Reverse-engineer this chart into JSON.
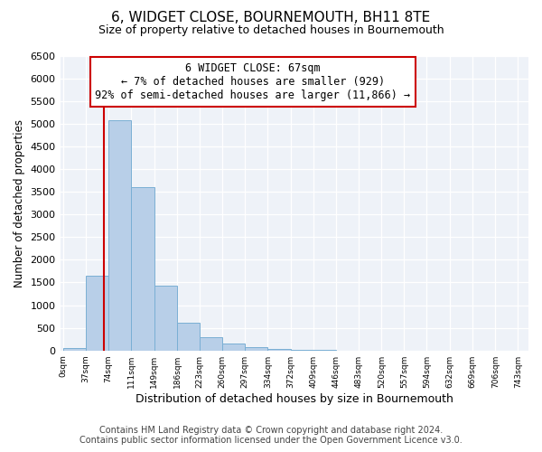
{
  "title": "6, WIDGET CLOSE, BOURNEMOUTH, BH11 8TE",
  "subtitle": "Size of property relative to detached houses in Bournemouth",
  "xlabel": "Distribution of detached houses by size in Bournemouth",
  "ylabel": "Number of detached properties",
  "bin_edges": [
    0,
    37,
    74,
    111,
    149,
    186,
    223,
    260,
    297,
    334,
    372,
    409,
    446,
    483,
    520,
    557,
    594,
    632,
    669,
    706,
    743
  ],
  "bin_values": [
    60,
    1650,
    5080,
    3600,
    1420,
    610,
    300,
    150,
    80,
    30,
    10,
    5,
    0,
    0,
    0,
    0,
    0,
    0,
    0,
    0
  ],
  "bar_color": "#b8cfe8",
  "bar_edge_color": "#7aafd4",
  "bar_edge_width": 0.7,
  "property_line_x": 67,
  "property_line_color": "#cc0000",
  "annotation_text": "6 WIDGET CLOSE: 67sqm\n← 7% of detached houses are smaller (929)\n92% of semi-detached houses are larger (11,866) →",
  "annotation_box_color": "#ffffff",
  "annotation_box_edge_color": "#cc0000",
  "ylim": [
    0,
    6500
  ],
  "yticks": [
    0,
    500,
    1000,
    1500,
    2000,
    2500,
    3000,
    3500,
    4000,
    4500,
    5000,
    5500,
    6000,
    6500
  ],
  "tick_labels": [
    "0sqm",
    "37sqm",
    "74sqm",
    "111sqm",
    "149sqm",
    "186sqm",
    "223sqm",
    "260sqm",
    "297sqm",
    "334sqm",
    "372sqm",
    "409sqm",
    "446sqm",
    "483sqm",
    "520sqm",
    "557sqm",
    "594sqm",
    "632sqm",
    "669sqm",
    "706sqm",
    "743sqm"
  ],
  "footer_line1": "Contains HM Land Registry data © Crown copyright and database right 2024.",
  "footer_line2": "Contains public sector information licensed under the Open Government Licence v3.0.",
  "bg_color": "#ffffff",
  "plot_bg_color": "#eef2f8",
  "title_fontsize": 11,
  "subtitle_fontsize": 9,
  "xlabel_fontsize": 9,
  "ylabel_fontsize": 8.5,
  "footer_fontsize": 7,
  "annotation_fontsize": 8.5
}
